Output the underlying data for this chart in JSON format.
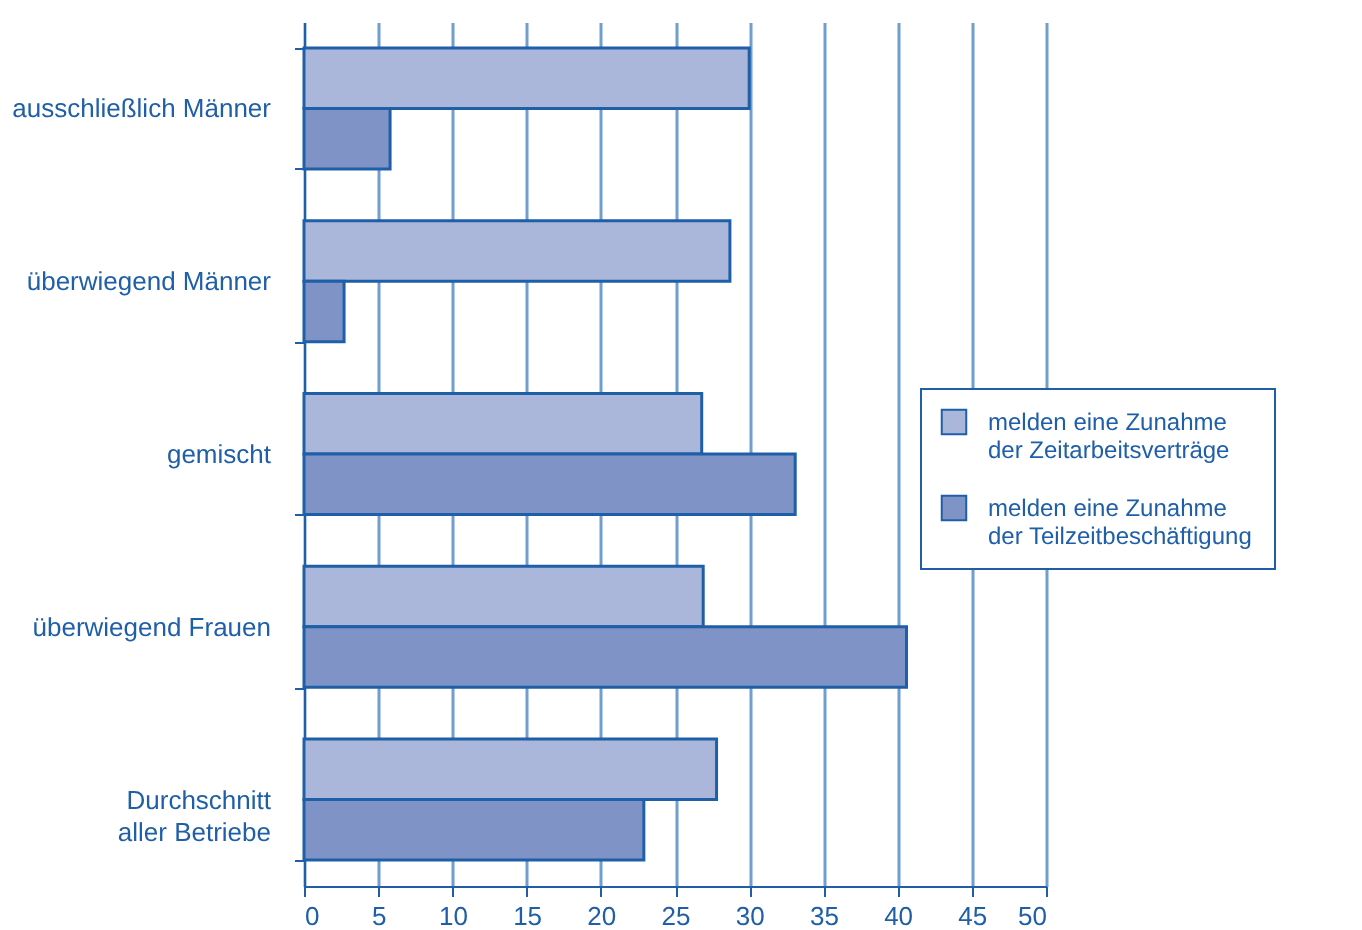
{
  "chart_data": {
    "type": "bar",
    "orientation": "horizontal",
    "categories": [
      "ausschließlich Männer",
      "überwiegend Männer",
      "gemischt",
      "überwiegend Frauen",
      "Durchschnitt\naller Betriebe"
    ],
    "series": [
      {
        "name": "melden eine Zunahme\nder Zeitarbeitsverträge",
        "color": "#aab6da",
        "values": [
          30,
          28.7,
          26.8,
          26.9,
          27.8
        ]
      },
      {
        "name": "melden eine Zunahme\nder Teilzeitbeschäftigung",
        "color": "#7f93c6",
        "values": [
          5.8,
          2.7,
          33.1,
          40.6,
          22.9
        ]
      }
    ],
    "xlim": [
      0,
      50
    ],
    "xticks": [
      0,
      5,
      10,
      15,
      20,
      25,
      30,
      35,
      40,
      45,
      50
    ],
    "grid": "x",
    "legend": "right"
  }
}
